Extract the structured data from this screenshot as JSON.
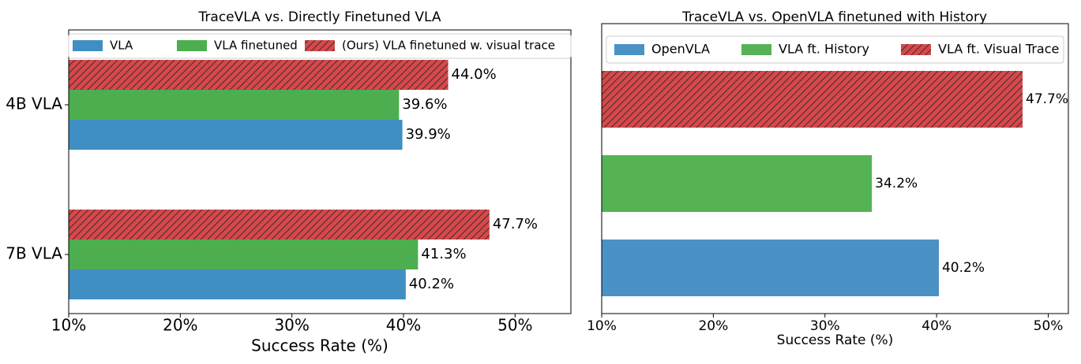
{
  "chart_data": [
    {
      "type": "barh",
      "title": "TraceVLA vs. Directly Finetuned VLA",
      "xlabel": "Success Rate (%)",
      "categories": [
        "4B VLA",
        "7B VLA"
      ],
      "series": [
        {
          "name": "VLA",
          "color": "#3f8fc4",
          "values": [
            39.9,
            40.2
          ],
          "value_labels": [
            "39.9%",
            "40.2%"
          ]
        },
        {
          "name": "VLA finetuned",
          "color": "#4cae4f",
          "values": [
            39.6,
            41.3
          ],
          "value_labels": [
            "39.6%",
            "41.3%"
          ]
        },
        {
          "name": "(Ours) VLA finetuned w. visual trace",
          "color": "#d9474a",
          "hatch": "//",
          "values": [
            44.0,
            47.7
          ],
          "value_labels": [
            "44.0%",
            "47.7%"
          ]
        }
      ],
      "xlim": [
        10,
        55
      ],
      "xticks": [
        {
          "value": 10,
          "label": "10%"
        },
        {
          "value": 20,
          "label": "20%"
        },
        {
          "value": 30,
          "label": "30%"
        },
        {
          "value": 40,
          "label": "40%"
        },
        {
          "value": 50,
          "label": "50%"
        }
      ],
      "legend": "top"
    },
    {
      "type": "barh",
      "title": "TraceVLA vs. OpenVLA finetuned with History",
      "xlabel": "Success Rate (%)",
      "categories": [
        null
      ],
      "series": [
        {
          "name": "OpenVLA",
          "color": "#4a92c6",
          "values": [
            40.2
          ],
          "value_labels": [
            "40.2%"
          ]
        },
        {
          "name": "VLA ft. History",
          "color": "#55b356",
          "values": [
            34.2
          ],
          "value_labels": [
            "34.2%"
          ]
        },
        {
          "name": "VLA ft. Visual Trace",
          "color": "#d9474a",
          "hatch": "//",
          "values": [
            47.7
          ],
          "value_labels": [
            "47.7%"
          ]
        }
      ],
      "xlim": [
        10,
        51.8
      ],
      "xticks": [
        {
          "value": 10,
          "label": "10%"
        },
        {
          "value": 20,
          "label": "20%"
        },
        {
          "value": 30,
          "label": "30%"
        },
        {
          "value": 40,
          "label": "40%"
        },
        {
          "value": 50,
          "label": "50%"
        }
      ],
      "legend": "top"
    }
  ]
}
